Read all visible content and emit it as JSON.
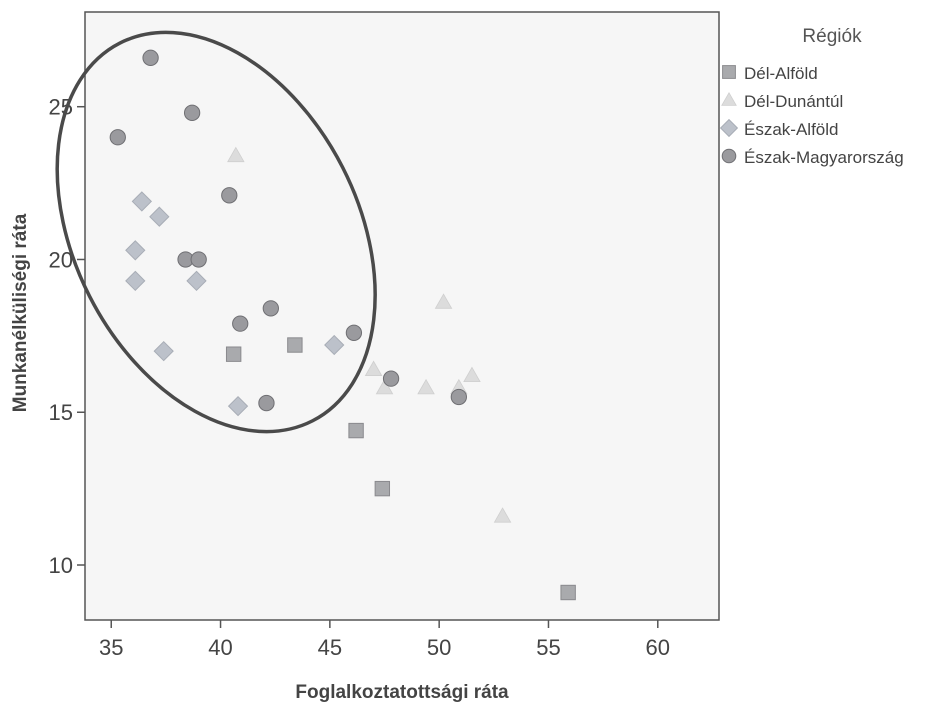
{
  "chart_data": {
    "type": "scatter",
    "xlabel": "Foglalkoztatottsági ráta",
    "ylabel": "Munkanélküliségi ráta",
    "xlim": [
      33.8,
      62.8
    ],
    "ylim": [
      8.2,
      28.1
    ],
    "x_ticks": [
      35,
      40,
      45,
      50,
      55,
      60
    ],
    "y_ticks": [
      10,
      15,
      20,
      25
    ],
    "x_tick_labels": [
      "35",
      "40",
      "45",
      "50",
      "55",
      "60"
    ],
    "y_tick_labels": [
      "10",
      "15",
      "20",
      "25"
    ],
    "grid": false,
    "legend": {
      "title": "Régiók",
      "placement": "right",
      "items": [
        "Dél-Alföld",
        "Dél-Dunántúl",
        "Észak-Alföld",
        "Észak-Magyarország"
      ]
    },
    "series": [
      {
        "name": "Dél-Alföld",
        "marker": "square",
        "color": "#a9aaad",
        "points": [
          [
            40.6,
            16.9
          ],
          [
            43.4,
            17.2
          ],
          [
            46.2,
            14.4
          ],
          [
            47.4,
            12.5
          ],
          [
            55.9,
            9.1
          ]
        ]
      },
      {
        "name": "Dél-Dunántúl",
        "marker": "triangle",
        "color": "#dcdcdc",
        "points": [
          [
            40.7,
            23.4
          ],
          [
            47.0,
            16.4
          ],
          [
            47.5,
            15.8
          ],
          [
            49.4,
            15.8
          ],
          [
            50.2,
            18.6
          ],
          [
            50.9,
            15.8
          ],
          [
            51.5,
            16.2
          ],
          [
            52.9,
            11.6
          ]
        ]
      },
      {
        "name": "Észak-Alföld",
        "marker": "diamond",
        "color": "#bcc1ca",
        "points": [
          [
            36.4,
            21.9
          ],
          [
            37.2,
            21.4
          ],
          [
            36.1,
            20.3
          ],
          [
            36.1,
            19.3
          ],
          [
            38.9,
            19.3
          ],
          [
            37.4,
            17.0
          ],
          [
            40.8,
            15.2
          ],
          [
            45.2,
            17.2
          ]
        ]
      },
      {
        "name": "Észak-Magyarország",
        "marker": "circle",
        "color": "#9a9a9e",
        "points": [
          [
            36.8,
            26.6
          ],
          [
            38.7,
            24.8
          ],
          [
            35.3,
            24.0
          ],
          [
            40.4,
            22.1
          ],
          [
            38.4,
            20.0
          ],
          [
            39.0,
            20.0
          ],
          [
            40.9,
            17.9
          ],
          [
            42.3,
            18.4
          ],
          [
            46.1,
            17.6
          ],
          [
            42.1,
            15.3
          ],
          [
            47.8,
            16.1
          ],
          [
            50.9,
            15.5
          ]
        ]
      }
    ],
    "annotations": [
      {
        "type": "ellipse",
        "center": [
          39.8,
          20.9
        ],
        "note": ""
      }
    ]
  }
}
